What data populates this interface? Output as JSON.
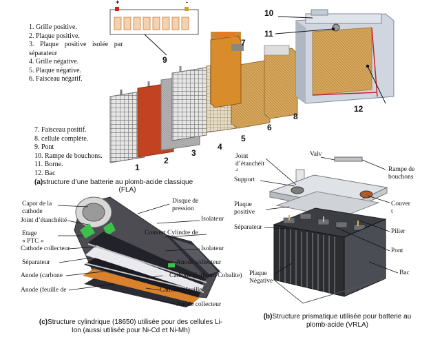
{
  "panel_a": {
    "legend_top": [
      "1. Grille positive.",
      "2. Plaque positive.",
      "3.   Plaque   positive   isolée   par",
      "séparateur",
      "4. Grille négative.",
      "5. Plaque négative.",
      "6. Faisceau négatif."
    ],
    "legend_bottom": [
      "7. Faisceau positif.",
      "8. cellule complète.",
      "9. Pont",
      "10. Rampe de bouchons.",
      "11. Borne.",
      "12. Bac"
    ],
    "numbers": [
      "1",
      "2",
      "3",
      "4",
      "5",
      "6",
      "7",
      "8",
      "9",
      "10",
      "11",
      "12"
    ],
    "terminal_plus": "+",
    "terminal_minus": "-",
    "caption_bold": "(a)",
    "caption_text": "structure d’une batterie au plomb-acide classique",
    "caption_line2": "(FLA)"
  },
  "panel_b": {
    "labels": {
      "joint": "Joint",
      "joint2": "d’étanchéit",
      "joint3": "é",
      "valv": "Valv",
      "rampe": "Rampe de",
      "rampe2": "bouchons",
      "support": "Support",
      "plaque_pos": "Plaque",
      "plaque_pos2": "positive",
      "couver": "Couver",
      "couver2": "t",
      "separateur": "Séparateur",
      "pilier": "Pilier",
      "pont": "Pont",
      "plaque_neg": "Plaque",
      "plaque_neg2": "Négative",
      "bac": "Bac"
    },
    "caption_bold": "(b)",
    "caption_text": "Structure prismatique utilisée pour   batterie au",
    "caption_line2": "plomb-acide (VRLA)"
  },
  "panel_c": {
    "labels": {
      "capot": "Capot de la",
      "capot2": "cathode",
      "disque": "Disque de",
      "disque2": "pression",
      "joint": "Joint d’étanchéité",
      "isolateur1": "Isolateur",
      "etage": "Etage",
      "etage2": "« PTC »",
      "couvert": "Couvert Cylindre de",
      "cathode_coll": "Cathode collecteur",
      "isolateur2": "Isolateur",
      "separateur": "Séparateur",
      "anode_coll1": "Anode collecteur",
      "anode_carbone": "Anode (carbone",
      "cathode_lithium": "Cathode (Lithium Cobalite)",
      "anode_feuille": "Anode (feuille de",
      "cathode_feuille": "Cathode (feuille",
      "anode_coll2": "Anode collecteur"
    },
    "caption_bold": "(c)",
    "caption_text": "Structure cylindrique (18650) utilisée pour des cellules Li-",
    "caption_line2": "Ion (aussi utilisée pour Ni-Cd et  Ni-Mh)"
  },
  "colors": {
    "grid": "#7a7a7a",
    "plate_pos": "#c2431f",
    "separator": "#9a9a9a",
    "negative": "#d9a658",
    "case": "#cfd6df",
    "green": "#3cc04c",
    "copper": "#d9822b"
  }
}
